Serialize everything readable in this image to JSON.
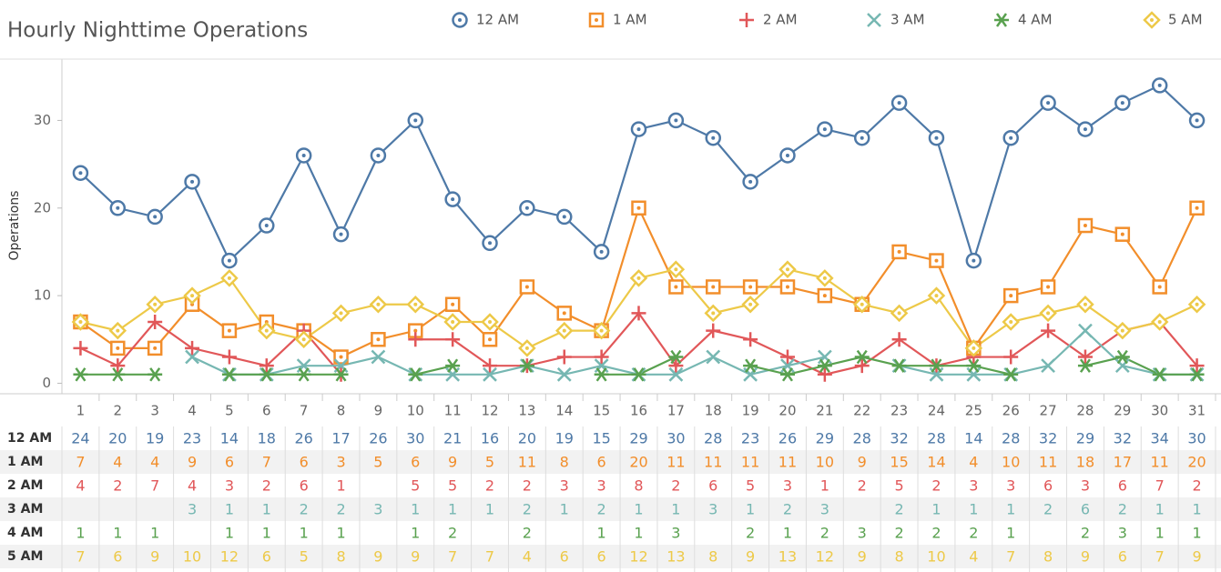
{
  "chart_data": {
    "type": "line",
    "title": "Hourly Nighttime Operations",
    "y_label": "Operations",
    "categories": [
      "1",
      "2",
      "3",
      "4",
      "5",
      "6",
      "7",
      "8",
      "9",
      "10",
      "11",
      "12",
      "13",
      "14",
      "15",
      "16",
      "17",
      "18",
      "19",
      "20",
      "21",
      "22",
      "23",
      "24",
      "25",
      "26",
      "27",
      "28",
      "29",
      "30",
      "31"
    ],
    "ylim": [
      -1.2,
      37
    ],
    "yticks": [
      0,
      10,
      20,
      30
    ],
    "grid": false,
    "series": [
      {
        "name": "12 AM",
        "color": "#4e79a7",
        "marker": "circle",
        "values": [
          24,
          20,
          19,
          23,
          14,
          18,
          26,
          17,
          26,
          30,
          21,
          16,
          20,
          19,
          15,
          29,
          30,
          28,
          23,
          26,
          29,
          28,
          32,
          28,
          14,
          28,
          32,
          29,
          32,
          34,
          30
        ]
      },
      {
        "name": "1 AM",
        "color": "#f28e2b",
        "marker": "square",
        "values": [
          7,
          4,
          4,
          9,
          6,
          7,
          6,
          3,
          5,
          6,
          9,
          5,
          11,
          8,
          6,
          20,
          11,
          11,
          11,
          11,
          10,
          9,
          15,
          14,
          4,
          10,
          11,
          18,
          17,
          11,
          20
        ]
      },
      {
        "name": "2 AM",
        "color": "#e15759",
        "marker": "plus",
        "values": [
          4,
          2,
          7,
          4,
          3,
          2,
          6,
          1,
          null,
          5,
          5,
          2,
          2,
          3,
          3,
          8,
          2,
          6,
          5,
          3,
          1,
          2,
          5,
          2,
          3,
          3,
          6,
          3,
          6,
          7,
          2
        ]
      },
      {
        "name": "3 AM",
        "color": "#76b7b2",
        "marker": "cross",
        "values": [
          null,
          null,
          null,
          3,
          1,
          1,
          2,
          2,
          3,
          1,
          1,
          1,
          2,
          1,
          2,
          1,
          1,
          3,
          1,
          2,
          3,
          null,
          2,
          1,
          1,
          1,
          2,
          6,
          2,
          1,
          1
        ]
      },
      {
        "name": "4 AM",
        "color": "#59a14f",
        "marker": "asterisk",
        "values": [
          1,
          1,
          1,
          null,
          1,
          1,
          1,
          1,
          null,
          1,
          2,
          null,
          2,
          null,
          1,
          1,
          3,
          null,
          2,
          1,
          2,
          3,
          2,
          2,
          2,
          1,
          null,
          2,
          3,
          1,
          1
        ]
      },
      {
        "name": "5 AM",
        "color": "#edc948",
        "marker": "diamond",
        "values": [
          7,
          6,
          9,
          10,
          12,
          6,
          5,
          8,
          9,
          9,
          7,
          7,
          4,
          6,
          6,
          12,
          13,
          8,
          9,
          13,
          12,
          9,
          8,
          10,
          4,
          7,
          8,
          9,
          6,
          7,
          9
        ]
      }
    ]
  }
}
